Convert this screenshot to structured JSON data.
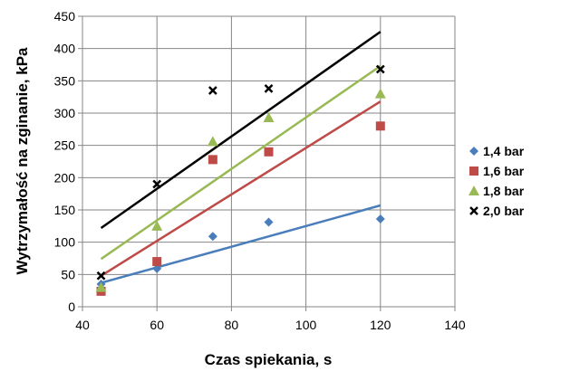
{
  "chart_data": {
    "type": "scatter",
    "title": "",
    "xlabel": "Czas spiekania, s",
    "ylabel": "Wytrzymałość na zginanie, kPa",
    "xlim": [
      40,
      140
    ],
    "ylim": [
      0,
      450
    ],
    "xticks": [
      "40",
      "60",
      "80",
      "100",
      "120",
      "140"
    ],
    "yticks": [
      "0",
      "50",
      "100",
      "150",
      "200",
      "250",
      "300",
      "350",
      "400",
      "450"
    ],
    "grid": true,
    "legend_position": "right",
    "series": [
      {
        "name": "1,4 bar",
        "marker": "diamond",
        "color": "#4a7ebb",
        "x": [
          45,
          60,
          75,
          90,
          120
        ],
        "y": [
          35,
          59,
          109,
          131,
          136
        ],
        "trendline": {
          "x": [
            45,
            120
          ],
          "y": [
            37,
            157
          ]
        }
      },
      {
        "name": "1,6 bar",
        "marker": "square",
        "color": "#be4b48",
        "x": [
          45,
          60,
          75,
          90,
          120
        ],
        "y": [
          24,
          70,
          228,
          240,
          280
        ],
        "trendline": {
          "x": [
            45,
            120
          ],
          "y": [
            48,
            318
          ]
        }
      },
      {
        "name": "1,8 bar",
        "marker": "triangle",
        "color": "#98b954",
        "x": [
          45,
          60,
          75,
          90,
          120
        ],
        "y": [
          30,
          125,
          256,
          293,
          330
        ],
        "trendline": {
          "x": [
            45,
            120
          ],
          "y": [
            74,
            373
          ]
        }
      },
      {
        "name": "2,0  bar",
        "marker": "x",
        "color": "#000000",
        "x": [
          45,
          60,
          75,
          90,
          120
        ],
        "y": [
          48,
          190,
          335,
          338,
          368
        ],
        "trendline": {
          "x": [
            45,
            120
          ],
          "y": [
            122,
            426
          ]
        }
      }
    ]
  }
}
